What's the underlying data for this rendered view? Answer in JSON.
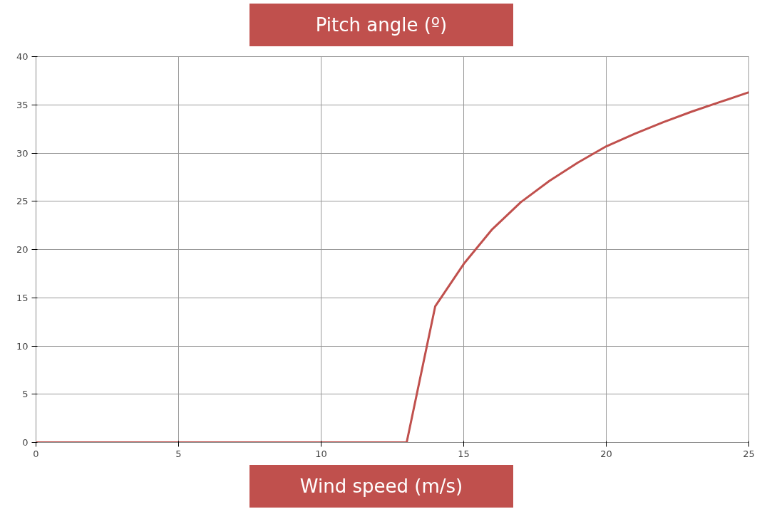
{
  "chart_data": {
    "type": "line",
    "title": "Pitch angle (º)",
    "xlabel": "Wind speed (m/s)",
    "x": [
      0,
      13,
      14,
      15,
      16,
      17,
      18,
      19,
      20,
      21,
      22,
      23,
      24,
      25
    ],
    "series": [
      {
        "color": "#c0504d",
        "values": [
          0,
          0,
          14.1,
          18.5,
          22.1,
          24.9,
          27.1,
          29.0,
          30.7,
          32.0,
          33.2,
          34.3,
          35.3,
          36.3
        ]
      }
    ],
    "xlim": [
      0,
      25
    ],
    "xticks": [
      0,
      5,
      10,
      15,
      20,
      25
    ],
    "ylim": [
      0,
      40
    ],
    "yticks": [
      0,
      5,
      10,
      15,
      20,
      25,
      30,
      35,
      40
    ],
    "grid": true,
    "marker": "none",
    "line_style": "solid"
  }
}
